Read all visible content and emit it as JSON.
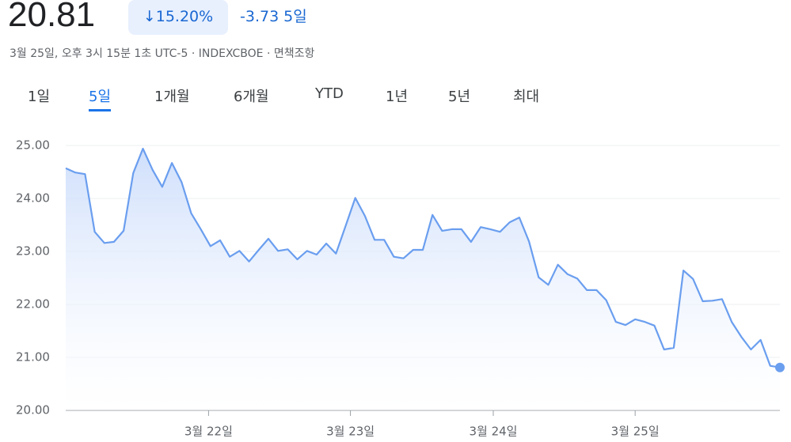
{
  "quote": {
    "price": "20.81",
    "change_pct": "15.20%",
    "change": "-3.73",
    "period": "5일",
    "subtitle": "3월 25일, 오후 3시 15분 1초 UTC-5 · INDEXCBOE · 면책조항"
  },
  "tabs": [
    "1일",
    "5일",
    "1개월",
    "6개월",
    "YTD",
    "1년",
    "5년",
    "최대"
  ],
  "selected_tab": 1,
  "chart_data": {
    "type": "area",
    "color": "#6a9eef",
    "values": [
      24.57,
      24.49,
      24.46,
      23.37,
      23.16,
      23.18,
      23.39,
      24.48,
      24.94,
      24.54,
      24.22,
      24.67,
      24.31,
      23.72,
      23.42,
      23.1,
      23.21,
      22.9,
      23.01,
      22.81,
      23.03,
      23.24,
      23.01,
      23.04,
      22.85,
      23.01,
      22.94,
      23.15,
      22.96,
      23.48,
      24.01,
      23.67,
      23.22,
      23.22,
      22.9,
      22.87,
      23.03,
      23.03,
      23.69,
      23.39,
      23.42,
      23.42,
      23.18,
      23.46,
      23.42,
      23.37,
      23.55,
      23.64,
      23.19,
      22.51,
      22.37,
      22.75,
      22.57,
      22.49,
      22.27,
      22.27,
      22.08,
      21.67,
      21.61,
      21.72,
      21.67,
      21.6,
      21.15,
      21.18,
      22.64,
      22.48,
      22.06,
      22.07,
      22.1,
      21.67,
      21.39,
      21.15,
      21.33,
      20.84,
      20.81
    ],
    "xlim": [
      0,
      74
    ],
    "xticks": [
      {
        "value": 14.8,
        "label": "3월 22일"
      },
      {
        "value": 29.5,
        "label": "3월 23일"
      },
      {
        "value": 44.3,
        "label": "3월 24일"
      },
      {
        "value": 59,
        "label": "3월 25일"
      }
    ],
    "ylim": [
      20,
      25
    ],
    "yticks": [
      {
        "value": 20,
        "label": "20.00"
      },
      {
        "value": 21,
        "label": "21.00"
      },
      {
        "value": 22,
        "label": "22.00"
      },
      {
        "value": 23,
        "label": "23.00"
      },
      {
        "value": 24,
        "label": "24.00"
      },
      {
        "value": 25,
        "label": "25.00"
      }
    ],
    "grid": true
  }
}
